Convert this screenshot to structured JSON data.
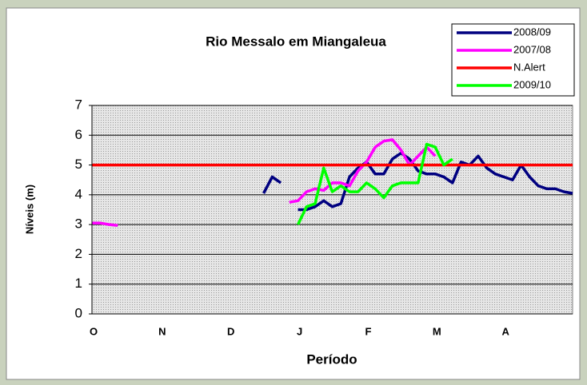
{
  "chart_data": {
    "type": "line",
    "title": "Rio  Messalo em Miangaleua",
    "x_label": "Período",
    "y_label": "Níveis (m)",
    "categories": [
      "O",
      null,
      null,
      null,
      null,
      null,
      null,
      null,
      "N",
      null,
      null,
      null,
      null,
      null,
      null,
      null,
      "D",
      null,
      null,
      null,
      null,
      null,
      null,
      null,
      "J",
      null,
      null,
      null,
      null,
      null,
      null,
      null,
      "F",
      null,
      null,
      null,
      null,
      null,
      null,
      null,
      "M",
      null,
      null,
      null,
      null,
      null,
      null,
      null,
      "A",
      null,
      null,
      null,
      null,
      null,
      null,
      null,
      null
    ],
    "series": [
      {
        "name": "2008/09",
        "color": "#000080",
        "values": [
          null,
          null,
          null,
          null,
          null,
          null,
          null,
          null,
          null,
          null,
          null,
          null,
          null,
          null,
          null,
          null,
          null,
          null,
          null,
          null,
          4.05,
          4.6,
          4.4,
          null,
          3.5,
          3.5,
          3.6,
          3.8,
          3.6,
          3.7,
          4.6,
          4.9,
          5.1,
          4.7,
          4.7,
          5.2,
          5.4,
          5.2,
          4.8,
          4.7,
          4.7,
          4.6,
          4.4,
          5.1,
          5.0,
          5.3,
          4.9,
          4.7,
          4.6,
          4.5,
          5.0,
          4.6,
          4.3,
          4.2,
          4.2,
          4.1,
          4.05
        ]
      },
      {
        "name": "2007/08",
        "color": "#ff00ff",
        "values": [
          3.05,
          3.05,
          3.0,
          2.97,
          null,
          null,
          null,
          null,
          null,
          null,
          null,
          null,
          null,
          null,
          null,
          null,
          null,
          null,
          null,
          null,
          null,
          null,
          null,
          3.75,
          3.8,
          4.1,
          4.2,
          4.15,
          4.4,
          4.4,
          4.3,
          4.8,
          5.1,
          5.6,
          5.8,
          5.85,
          5.5,
          5.0,
          5.3,
          5.6,
          5.3,
          null,
          null,
          null,
          null,
          null,
          null,
          null,
          null,
          null,
          null,
          null,
          null,
          null,
          null,
          null,
          null
        ]
      },
      {
        "name": "N.Alert",
        "color": "#ff0000",
        "values": [
          5,
          5,
          5,
          5,
          5,
          5,
          5,
          5,
          5,
          5,
          5,
          5,
          5,
          5,
          5,
          5,
          5,
          5,
          5,
          5,
          5,
          5,
          5,
          5,
          5,
          5,
          5,
          5,
          5,
          5,
          5,
          5,
          5,
          5,
          5,
          5,
          5,
          5,
          5,
          5,
          5,
          5,
          5,
          5,
          5,
          5,
          5,
          5,
          5,
          5,
          5,
          5,
          5,
          5,
          5,
          5,
          5
        ]
      },
      {
        "name": "2009/10",
        "color": "#00ff00",
        "values": [
          null,
          null,
          null,
          null,
          null,
          null,
          null,
          null,
          null,
          null,
          null,
          null,
          null,
          null,
          null,
          null,
          null,
          null,
          null,
          null,
          null,
          null,
          null,
          null,
          3.0,
          3.6,
          3.7,
          4.9,
          4.1,
          4.3,
          4.1,
          4.1,
          4.4,
          4.2,
          3.9,
          4.3,
          4.4,
          4.4,
          4.4,
          5.7,
          5.6,
          5.0,
          5.2,
          null,
          null,
          null,
          null,
          null,
          null,
          null,
          null,
          null,
          null,
          null,
          null,
          null,
          null
        ]
      }
    ],
    "ylim": [
      0,
      7
    ],
    "yticks": [
      0,
      1,
      2,
      3,
      4,
      5,
      6,
      7
    ],
    "grid": true,
    "legend": "top-right"
  }
}
